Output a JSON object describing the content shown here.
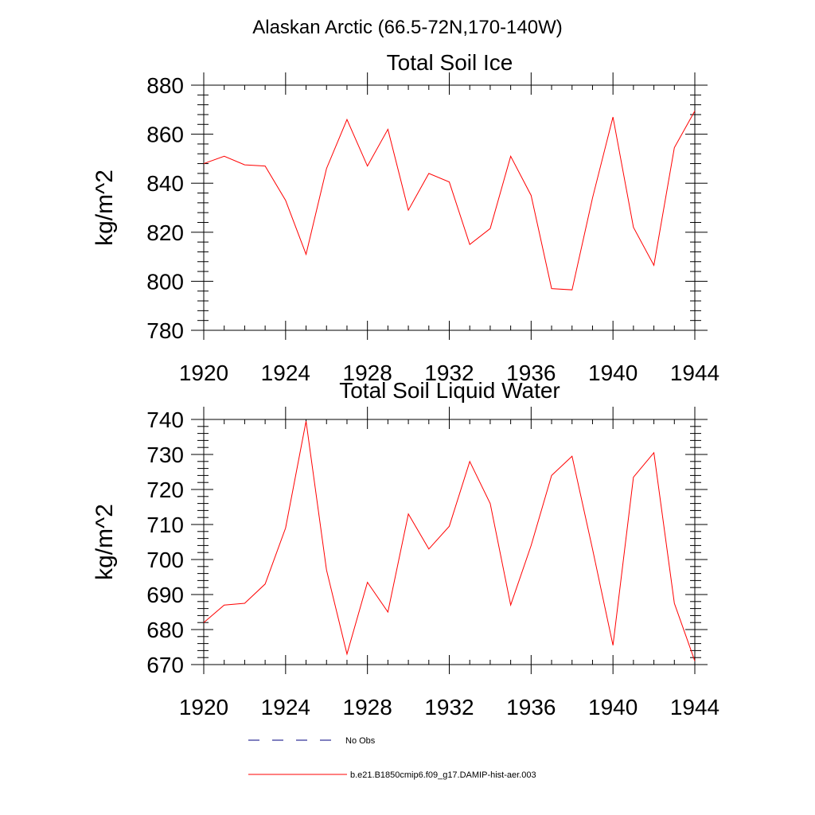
{
  "figure": {
    "title": "Alaskan Arctic (66.5-72N,170-140W)"
  },
  "colors": {
    "series": "#ff0000",
    "obs": "#000080",
    "axis": "#000000"
  },
  "legend": {
    "placement": "bottom",
    "entries": [
      {
        "label": "No Obs",
        "style": "dashed"
      },
      {
        "label": "b.e21.B1850cmip6.f09_g17.DAMIP-hist-aer.003",
        "style": "solid"
      }
    ]
  },
  "chart_data": [
    {
      "type": "line",
      "title": "Total Soil Ice",
      "xlabel": "",
      "ylabel": "kg/m^2",
      "xlim": [
        1920,
        1944
      ],
      "ylim": [
        780,
        880
      ],
      "x_ticks": [
        1920,
        1924,
        1928,
        1932,
        1936,
        1940,
        1944
      ],
      "y_ticks": [
        780,
        800,
        820,
        840,
        860,
        880
      ],
      "grid": false,
      "x": [
        1920,
        1921,
        1922,
        1923,
        1924,
        1925,
        1926,
        1927,
        1928,
        1929,
        1930,
        1931,
        1932,
        1933,
        1934,
        1935,
        1936,
        1937,
        1938,
        1939,
        1940,
        1941,
        1942,
        1943,
        1944
      ],
      "series": [
        {
          "name": "b.e21.B1850cmip6.f09_g17.DAMIP-hist-aer.003",
          "values": [
            848,
            851,
            847.5,
            847,
            833,
            811,
            846,
            866,
            847,
            862,
            829,
            844,
            840.5,
            815,
            821.5,
            851,
            835,
            797,
            796.5,
            834,
            867,
            822,
            806.5,
            854.5,
            869.5
          ]
        }
      ]
    },
    {
      "type": "line",
      "title": "Total Soil Liquid Water",
      "xlabel": "",
      "ylabel": "kg/m^2",
      "xlim": [
        1920,
        1944
      ],
      "ylim": [
        670,
        740
      ],
      "x_ticks": [
        1920,
        1924,
        1928,
        1932,
        1936,
        1940,
        1944
      ],
      "y_ticks": [
        670,
        680,
        690,
        700,
        710,
        720,
        730,
        740
      ],
      "grid": false,
      "x": [
        1920,
        1921,
        1922,
        1923,
        1924,
        1925,
        1926,
        1927,
        1928,
        1929,
        1930,
        1931,
        1932,
        1933,
        1934,
        1935,
        1936,
        1937,
        1938,
        1939,
        1940,
        1941,
        1942,
        1943,
        1944
      ],
      "series": [
        {
          "name": "b.e21.B1850cmip6.f09_g17.DAMIP-hist-aer.003",
          "values": [
            682,
            687,
            687.5,
            693,
            709,
            739.5,
            697,
            673,
            693.5,
            685,
            713,
            703,
            709.5,
            728,
            716,
            687,
            704,
            724,
            729.5,
            703,
            675.5,
            723.5,
            730.5,
            687.5,
            671
          ]
        }
      ]
    }
  ]
}
